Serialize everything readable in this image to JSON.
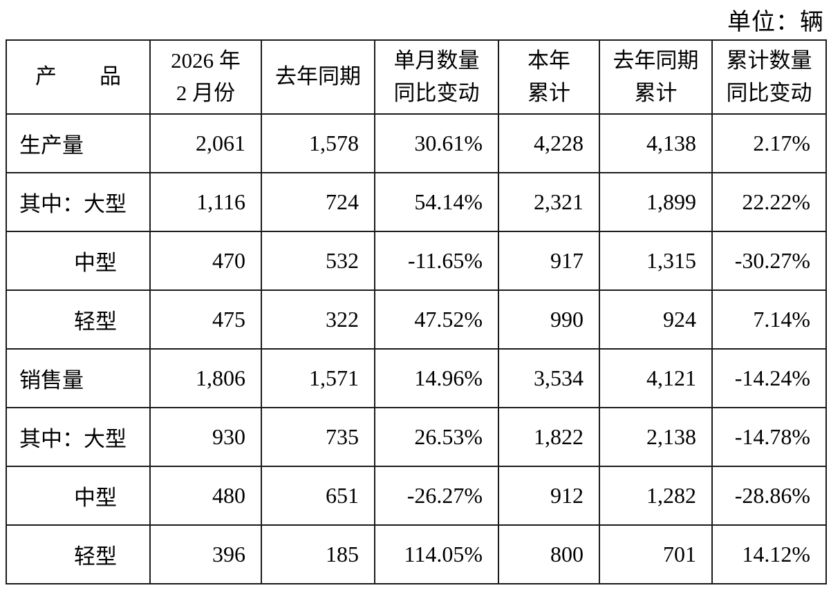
{
  "unit_label": "单位：辆",
  "table": {
    "headers": [
      "产　　品",
      "2026 年\n2 月份",
      "去年同期",
      "单月数量\n同比变动",
      "本年\n累计",
      "去年同期\n累计",
      "累计数量\n同比变动"
    ],
    "rows": [
      {
        "indent": false,
        "cells": [
          "生产量",
          "2,061",
          "1,578",
          "30.61%",
          "4,228",
          "4,138",
          "2.17%"
        ]
      },
      {
        "indent": false,
        "cells": [
          "其中：大型",
          "1,116",
          "724",
          "54.14%",
          "2,321",
          "1,899",
          "22.22%"
        ]
      },
      {
        "indent": true,
        "cells": [
          "中型",
          "470",
          "532",
          "-11.65%",
          "917",
          "1,315",
          "-30.27%"
        ]
      },
      {
        "indent": true,
        "cells": [
          "轻型",
          "475",
          "322",
          "47.52%",
          "990",
          "924",
          "7.14%"
        ]
      },
      {
        "indent": false,
        "cells": [
          "销售量",
          "1,806",
          "1,571",
          "14.96%",
          "3,534",
          "4,121",
          "-14.24%"
        ]
      },
      {
        "indent": false,
        "cells": [
          "其中：大型",
          "930",
          "735",
          "26.53%",
          "1,822",
          "2,138",
          "-14.78%"
        ]
      },
      {
        "indent": true,
        "cells": [
          "中型",
          "480",
          "651",
          "-26.27%",
          "912",
          "1,282",
          "-28.86%"
        ]
      },
      {
        "indent": true,
        "cells": [
          "轻型",
          "396",
          "185",
          "114.05%",
          "800",
          "701",
          "14.12%"
        ]
      }
    ]
  },
  "colors": {
    "border": "#1a1a1a",
    "text": "#000000",
    "background": "#ffffff"
  }
}
